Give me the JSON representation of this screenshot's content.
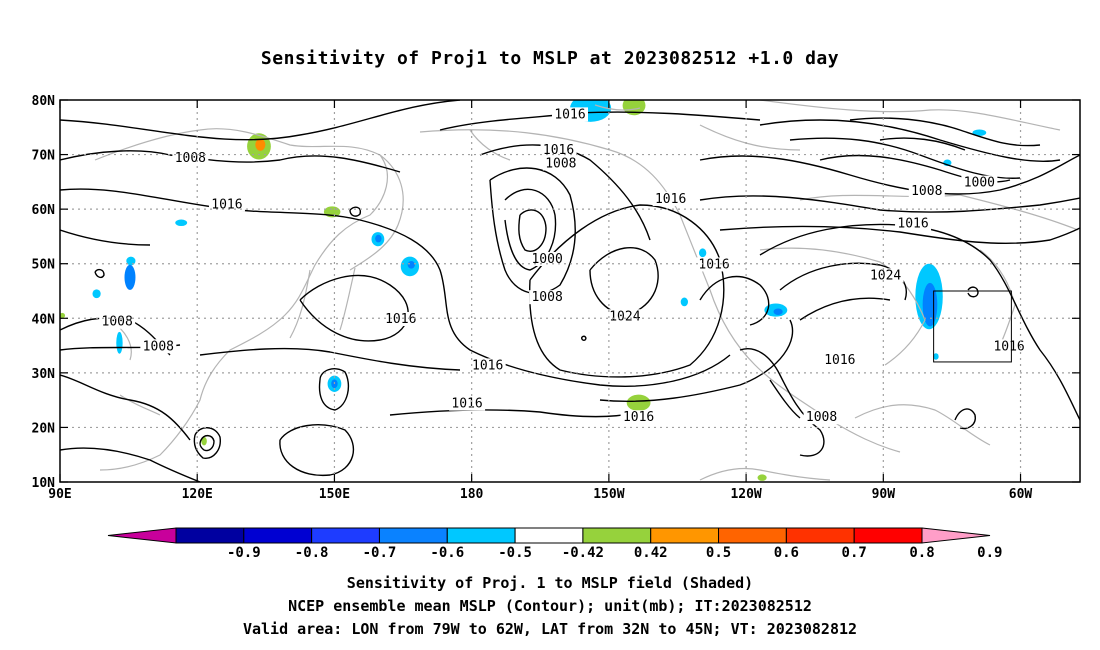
{
  "title": "Sensitivity of Proj1 to MSLP at 2023082512 +1.0 day",
  "map": {
    "lat_labels": [
      "80N",
      "70N",
      "60N",
      "50N",
      "40N",
      "30N",
      "20N",
      "10N"
    ],
    "lon_labels": [
      "90E",
      "120E",
      "150E",
      "180",
      "150W",
      "120W",
      "90W",
      "60W"
    ],
    "contour_labels": [
      {
        "text": "1016",
        "lon": 201.5,
        "lat": 77.0
      },
      {
        "text": "1016",
        "lon": 199.0,
        "lat": 70.5
      },
      {
        "text": "1008",
        "lon": 199.5,
        "lat": 68.0
      },
      {
        "text": "1008",
        "lon": 118.5,
        "lat": 69.0
      },
      {
        "text": "1016",
        "lon": 126.5,
        "lat": 60.5
      },
      {
        "text": "1016",
        "lon": 223.5,
        "lat": 61.5
      },
      {
        "text": "1000",
        "lon": 196.5,
        "lat": 50.5
      },
      {
        "text": "1008",
        "lon": 196.5,
        "lat": 43.5
      },
      {
        "text": "1016",
        "lon": 233.0,
        "lat": 49.5
      },
      {
        "text": "1016",
        "lon": 276.5,
        "lat": 57.0
      },
      {
        "text": "1008",
        "lon": 279.5,
        "lat": 63.0
      },
      {
        "text": "1000",
        "lon": 291.0,
        "lat": 64.5
      },
      {
        "text": "1024",
        "lon": 270.5,
        "lat": 47.5
      },
      {
        "text": "1024",
        "lon": 213.5,
        "lat": 40.0
      },
      {
        "text": "1016",
        "lon": 164.5,
        "lat": 39.5
      },
      {
        "text": "1008",
        "lon": 102.5,
        "lat": 39.0
      },
      {
        "text": "1008",
        "lon": 111.5,
        "lat": 34.5
      },
      {
        "text": "1016",
        "lon": 183.5,
        "lat": 31.0
      },
      {
        "text": "1016",
        "lon": 179.0,
        "lat": 24.0
      },
      {
        "text": "1016",
        "lon": 216.5,
        "lat": 21.5
      },
      {
        "text": "1016",
        "lon": 260.5,
        "lat": 32.0
      },
      {
        "text": "1008",
        "lon": 256.5,
        "lat": 21.5
      },
      {
        "text": "1016",
        "lon": 297.5,
        "lat": 34.5
      }
    ],
    "shaded_areas": [
      {
        "color": "#00c8ff",
        "lon": 206,
        "lat": 78.5,
        "rx": 4.5,
        "ry": 2.5
      },
      {
        "color": "#96d23c",
        "lon": 215.5,
        "lat": 79.0,
        "rx": 2.5,
        "ry": 1.8
      },
      {
        "color": "#00c8ff",
        "lon": 291,
        "lat": 74.0,
        "rx": 1.5,
        "ry": 0.6
      },
      {
        "color": "#00c8ff",
        "lon": 284,
        "lat": 68.5,
        "rx": 0.9,
        "ry": 0.6
      },
      {
        "color": "#96d23c",
        "lon": 133.5,
        "lat": 71.5,
        "rx": 2.6,
        "ry": 2.4
      },
      {
        "color": "#ff8c00",
        "lon": 133.8,
        "lat": 71.8,
        "rx": 1.1,
        "ry": 1.1
      },
      {
        "color": "#96d23c",
        "lon": 149.5,
        "lat": 59.5,
        "rx": 1.8,
        "ry": 1.0
      },
      {
        "color": "#00c8ff",
        "lon": 116.5,
        "lat": 57.5,
        "rx": 1.3,
        "ry": 0.6
      },
      {
        "color": "#00c8ff",
        "lon": 105.5,
        "lat": 50.5,
        "rx": 1.0,
        "ry": 0.8
      },
      {
        "color": "#0082ff",
        "lon": 105.3,
        "lat": 47.5,
        "rx": 1.2,
        "ry": 2.3
      },
      {
        "color": "#00c8ff",
        "lon": 98.0,
        "lat": 44.5,
        "rx": 0.9,
        "ry": 0.8
      },
      {
        "color": "#96d23c",
        "lon": 90.5,
        "lat": 40.5,
        "rx": 0.6,
        "ry": 0.5
      },
      {
        "color": "#00c8ff",
        "lon": 159.5,
        "lat": 54.5,
        "rx": 1.4,
        "ry": 1.3
      },
      {
        "color": "#0082ff",
        "lon": 159.6,
        "lat": 54.6,
        "rx": 0.7,
        "ry": 0.7
      },
      {
        "color": "#00c8ff",
        "lon": 166.5,
        "lat": 49.5,
        "rx": 2.0,
        "ry": 1.8
      },
      {
        "color": "#0082ff",
        "lon": 166.8,
        "lat": 49.8,
        "rx": 0.8,
        "ry": 0.7
      },
      {
        "color": "#00c8ff",
        "lon": 103.0,
        "lat": 35.5,
        "rx": 0.7,
        "ry": 2.0
      },
      {
        "color": "#00c8ff",
        "lon": 150.0,
        "lat": 28.0,
        "rx": 1.5,
        "ry": 1.5
      },
      {
        "color": "#0082ff",
        "lon": 150.0,
        "lat": 28.0,
        "rx": 0.7,
        "ry": 0.8
      },
      {
        "color": "#00c8ff",
        "lon": 230.5,
        "lat": 52.0,
        "rx": 0.8,
        "ry": 0.8
      },
      {
        "color": "#00c8ff",
        "lon": 226.5,
        "lat": 43.0,
        "rx": 0.8,
        "ry": 0.8
      },
      {
        "color": "#00c8ff",
        "lon": 246.5,
        "lat": 41.5,
        "rx": 2.5,
        "ry": 1.2
      },
      {
        "color": "#0082ff",
        "lon": 247.0,
        "lat": 41.2,
        "rx": 1.0,
        "ry": 0.6
      },
      {
        "color": "#96d23c",
        "lon": 216.5,
        "lat": 24.5,
        "rx": 2.6,
        "ry": 1.5
      },
      {
        "color": "#96d23c",
        "lon": 243.5,
        "lat": 10.8,
        "rx": 1.0,
        "ry": 0.6
      },
      {
        "color": "#00c8ff",
        "lon": 280.0,
        "lat": 44.0,
        "rx": 3.0,
        "ry": 6.0
      },
      {
        "color": "#0082ff",
        "lon": 280.2,
        "lat": 42.5,
        "rx": 1.6,
        "ry": 4.0
      },
      {
        "color": "#00c8ff",
        "lon": 281.5,
        "lat": 33.0,
        "rx": 0.6,
        "ry": 0.6
      },
      {
        "color": "#96d23c",
        "lon": 121.5,
        "lat": 17.5,
        "rx": 0.6,
        "ry": 0.8
      }
    ],
    "valid_box": {
      "lon_min": 281,
      "lon_max": 298,
      "lat_min": 32,
      "lat_max": 45
    }
  },
  "colorbar": {
    "colors": [
      "#c8009b",
      "#0000a0",
      "#0000d2",
      "#1e3cff",
      "#0a82ff",
      "#00c8ff",
      "#ffffff",
      "#96d23c",
      "#ff9600",
      "#ff6400",
      "#ff3200",
      "#ff0000",
      "#ff9ec8"
    ],
    "tick_labels": [
      "-0.9",
      "-0.8",
      "-0.7",
      "-0.6",
      "-0.5",
      "-0.42",
      "0.42",
      "0.5",
      "0.6",
      "0.7",
      "0.8",
      "0.9"
    ]
  },
  "captions": {
    "line1": "Sensitivity of Proj. 1 to MSLP field (Shaded)",
    "line2": "NCEP ensemble mean MSLP (Contour); unit(mb); IT:2023082512",
    "line3": "Valid area: LON from 79W to 62W, LAT from 32N to 45N; VT: 2023082812"
  }
}
